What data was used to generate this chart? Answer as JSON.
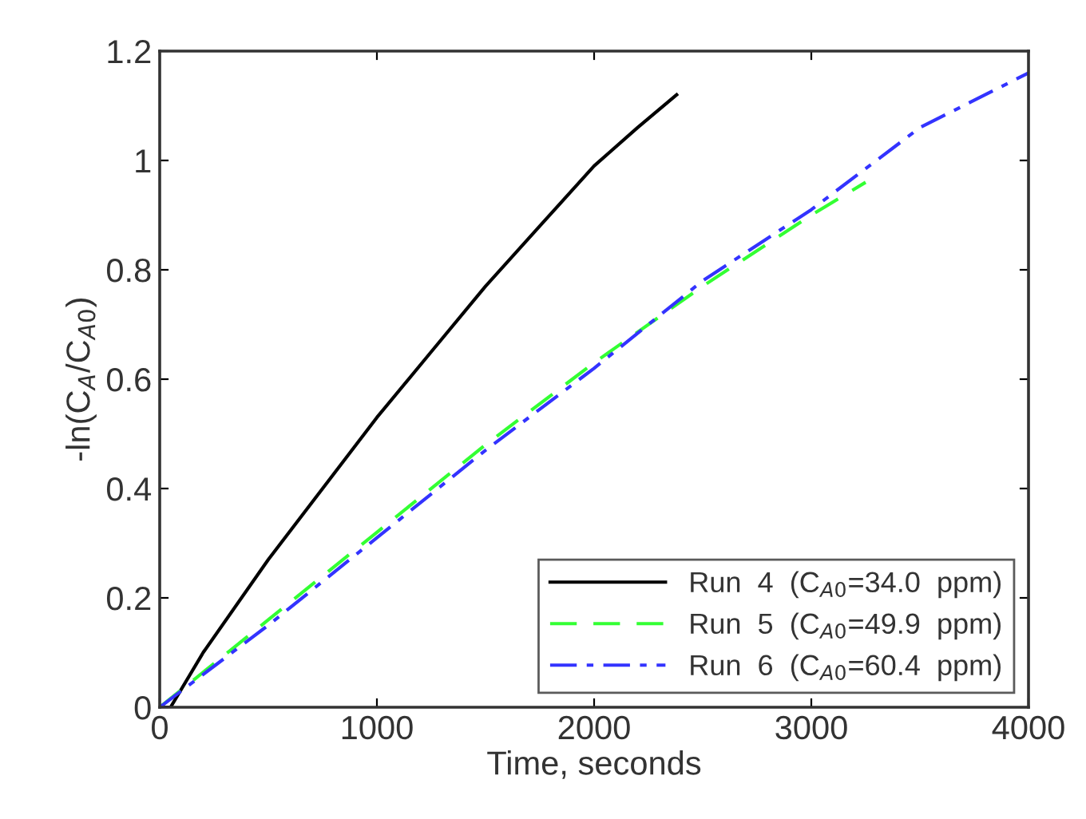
{
  "chart_data": {
    "type": "line",
    "xlabel": "Time, seconds",
    "ylabel": "-ln(C$_{A}$/C$_{A0}$)",
    "xlim": [
      0,
      4000
    ],
    "ylim": [
      0,
      1.2
    ],
    "xticks": [
      0,
      1000,
      2000,
      3000,
      4000
    ],
    "yticks": [
      0,
      0.2,
      0.4,
      0.6,
      0.8,
      1,
      1.2
    ],
    "grid": false,
    "legend": "bottom right",
    "series": [
      {
        "name": "Run  4  (C$_{A0}$=34.0  ppm)",
        "color": "#000000",
        "line_style": "solid",
        "x": [
          0,
          50,
          200,
          500,
          1000,
          1250,
          1500,
          1750,
          2000,
          2200,
          2380
        ],
        "values": [
          0,
          0,
          0.1,
          0.27,
          0.53,
          0.65,
          0.77,
          0.88,
          0.99,
          1.06,
          1.12
        ]
      },
      {
        "name": "Run  5  (C$_{A0}$=49.9  ppm)",
        "color": "#33ff33",
        "line_style": "dashed",
        "x": [
          0,
          500,
          1000,
          1500,
          2000,
          2500,
          3000,
          3250
        ],
        "values": [
          0,
          0.16,
          0.32,
          0.48,
          0.63,
          0.77,
          0.9,
          0.96
        ]
      },
      {
        "name": "Run  6  (C$_{A0}$=60.4  ppm)",
        "color": "#3333ff",
        "line_style": "dashdot",
        "x": [
          0,
          500,
          1000,
          1500,
          2000,
          2500,
          3000,
          3500,
          4000
        ],
        "values": [
          0,
          0.15,
          0.31,
          0.47,
          0.62,
          0.78,
          0.91,
          1.06,
          1.16
        ]
      }
    ]
  }
}
